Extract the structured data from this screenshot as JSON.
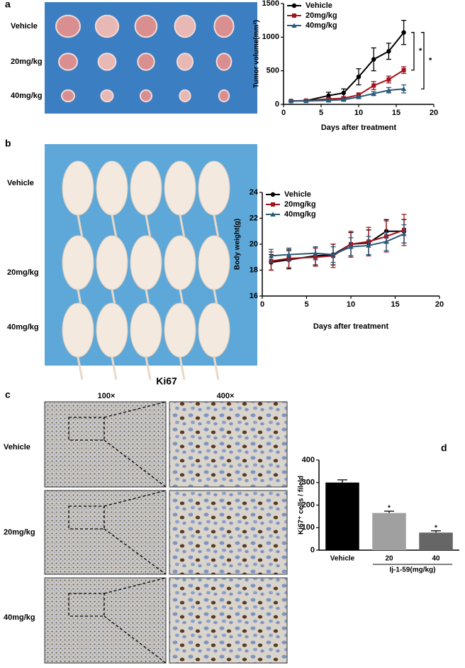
{
  "figure": {
    "panel_a": {
      "letter": "a",
      "rows": [
        "Vehicle",
        "20mg/kg",
        "40mg/kg"
      ]
    },
    "panel_b": {
      "letter": "b",
      "rows": [
        "Vehicle",
        "20mg/kg",
        "40mg/kg"
      ]
    },
    "panel_c": {
      "letter": "c",
      "title": "Ki67",
      "columns": [
        "100×",
        "400×"
      ],
      "rows": [
        "Vehicle",
        "20mg/kg",
        "40mg/kg"
      ]
    },
    "panel_d": {
      "letter": "d"
    }
  },
  "chart_data": [
    {
      "type": "line",
      "x_label": "Days after treatment",
      "y_label": "Tumor volume(mm³)",
      "x": [
        1,
        3,
        6,
        8,
        10,
        12,
        14,
        16
      ],
      "series": [
        {
          "name": "Vehicle",
          "color": "#000000",
          "marker": "circle",
          "values": [
            50,
            55,
            130,
            170,
            410,
            670,
            790,
            1070
          ],
          "errors": [
            10,
            10,
            50,
            60,
            120,
            170,
            120,
            180
          ]
        },
        {
          "name": "20mg/kg",
          "color": "#a0141e",
          "marker": "square",
          "values": [
            50,
            55,
            80,
            90,
            140,
            280,
            370,
            510
          ],
          "errors": [
            10,
            10,
            20,
            20,
            30,
            60,
            50,
            50
          ]
        },
        {
          "name": "40mg/kg",
          "color": "#2a5a7a",
          "marker": "triangle",
          "values": [
            50,
            50,
            60,
            70,
            110,
            160,
            210,
            230
          ],
          "errors": [
            10,
            10,
            15,
            15,
            20,
            30,
            40,
            60
          ]
        }
      ],
      "xlim": [
        0,
        20
      ],
      "xticks": [
        0,
        5,
        10,
        15,
        20
      ],
      "ylim": [
        0,
        1500
      ],
      "yticks": [
        0,
        500,
        1000,
        1500
      ],
      "annotations": [
        "*",
        "*"
      ],
      "legend": "upper left"
    },
    {
      "type": "line",
      "x_label": "Days after treatment",
      "y_label": "Body weight(g)",
      "x": [
        1,
        3,
        6,
        8,
        10,
        12,
        14,
        16
      ],
      "series": [
        {
          "name": "Vehicle",
          "color": "#000000",
          "marker": "circle",
          "values": [
            18.6,
            18.8,
            19.1,
            19.2,
            20.0,
            20.1,
            21.0,
            21.0
          ],
          "errors": [
            0.6,
            0.7,
            0.7,
            0.8,
            0.9,
            1.0,
            0.9,
            0.9
          ]
        },
        {
          "name": "20mg/kg",
          "color": "#a0141e",
          "marker": "square",
          "values": [
            18.7,
            18.9,
            19.0,
            19.1,
            20.0,
            20.2,
            20.6,
            21.1
          ],
          "errors": [
            0.7,
            0.7,
            0.7,
            0.9,
            1.0,
            1.1,
            1.2,
            1.2
          ]
        },
        {
          "name": "40mg/kg",
          "color": "#2a5a7a",
          "marker": "triangle",
          "values": [
            19.1,
            19.2,
            19.3,
            19.2,
            19.8,
            19.9,
            20.2,
            20.8
          ],
          "errors": [
            0.5,
            0.5,
            0.5,
            0.6,
            0.7,
            0.7,
            0.7,
            0.7
          ]
        }
      ],
      "xlim": [
        0,
        20
      ],
      "xticks": [
        0,
        5,
        10,
        15,
        20
      ],
      "ylim": [
        16,
        24
      ],
      "yticks": [
        16,
        18,
        20,
        22,
        24
      ],
      "legend": "upper left"
    },
    {
      "type": "bar",
      "y_label": "Ki67⁺ cells / fileld",
      "x_label": "Ij-1-59(mg/kg)",
      "categories": [
        "Vehicle",
        "20",
        "40"
      ],
      "values": [
        300,
        165,
        78
      ],
      "errors": [
        12,
        8,
        8
      ],
      "colors": [
        "#000000",
        "#a0a0a0",
        "#666666"
      ],
      "ylim": [
        0,
        400
      ],
      "yticks": [
        0,
        100,
        200,
        300,
        400
      ],
      "annotations": [
        null,
        "*",
        "*"
      ]
    }
  ]
}
